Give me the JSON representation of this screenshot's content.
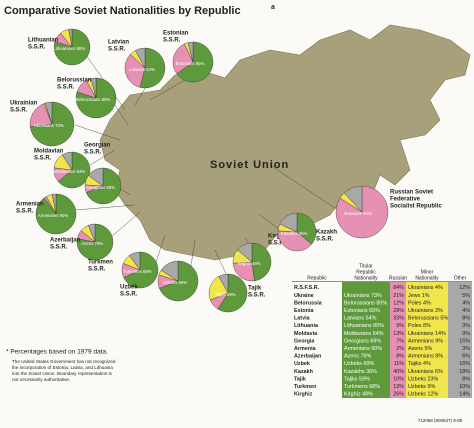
{
  "title": "Comparative Soviet Nationalities by Republic",
  "title_mark": "a",
  "map_label": "Soviet Union",
  "pies": [
    {
      "name": [
        "Lithuanian",
        "S.S.R."
      ],
      "label": "Lithuanians 80%",
      "values": [
        80,
        9,
        8,
        3
      ]
    },
    {
      "name": [
        "Latvian",
        "S.S.R."
      ],
      "label": "Latvians 54%",
      "values": [
        54,
        33,
        5,
        8
      ]
    },
    {
      "name": [
        "Estonian",
        "S.S.R."
      ],
      "label": "Estonians 65%",
      "values": [
        65,
        28,
        3,
        4
      ]
    },
    {
      "name": [
        "Belorussian",
        "S.S.R."
      ],
      "label": "Belorussians 80%",
      "values": [
        80,
        12,
        4,
        4
      ]
    },
    {
      "name": [
        "Ukrainian",
        "S.S.R."
      ],
      "label": "Ukrainians 73%",
      "values": [
        73,
        21,
        1,
        5
      ]
    },
    {
      "name": [
        "Moldavian",
        "S.S.R."
      ],
      "label": "Moldavians 64%",
      "values": [
        64,
        13,
        14,
        9
      ]
    },
    {
      "name": [
        "Georgian",
        "S.S.R."
      ],
      "label": "Georgians 69%",
      "values": [
        69,
        7,
        9,
        15
      ]
    },
    {
      "name": [
        "Armenian",
        "S.S.R."
      ],
      "label": "Armenians 90%",
      "values": [
        90,
        2,
        5,
        3
      ]
    },
    {
      "name": [
        "Azerbaijan",
        "S.S.R."
      ],
      "label": "Azeris 78%",
      "values": [
        78,
        8,
        8,
        6
      ]
    },
    {
      "name": [
        "Turkmen",
        "S.S.R."
      ],
      "label": "Turkmens 68%",
      "values": [
        68,
        13,
        9,
        10
      ]
    },
    {
      "name": [
        "Uzbek",
        "S.S.R."
      ],
      "label": "Uzbeks 69%",
      "values": [
        69,
        11,
        4,
        16
      ]
    },
    {
      "name": [
        "Tajik",
        "S.S.R."
      ],
      "label": "Tajiks 59%",
      "values": [
        59,
        10,
        23,
        8
      ]
    },
    {
      "name": [
        "Kirghiz",
        "S.S.R."
      ],
      "label": "Kirghiz 48%",
      "values": [
        48,
        26,
        12,
        14
      ]
    },
    {
      "name": [
        "Kazakh",
        "S.S.R."
      ],
      "label": "Kazakhs 36%",
      "values": [
        36,
        40,
        6,
        18
      ]
    },
    {
      "name": [
        "Russian Soviet",
        "Federative",
        "Socialist Republic"
      ],
      "label": "Russians 84%",
      "values": [
        0,
        84,
        4,
        12
      ]
    }
  ],
  "table": {
    "headers": [
      [
        "Republic"
      ],
      [
        "Titular",
        "Republic",
        "Nationality"
      ],
      [
        "Russian"
      ],
      [
        "Minor",
        "Nationality"
      ],
      [
        "Other"
      ]
    ],
    "rows": [
      [
        "R.S.F.S.R.",
        null,
        "84%",
        "Ukrainians 4%",
        "12%"
      ],
      [
        "Ukraine",
        "Ukrainians 73%",
        "21%",
        "Jews 1%",
        "5%"
      ],
      [
        "Belorussia",
        "Belorussians 80%",
        "12%",
        "Poles 4%",
        "4%"
      ],
      [
        "Estonia",
        "Estonians 65%",
        "28%",
        "Ukrainians 3%",
        "4%"
      ],
      [
        "Latvia",
        "Latvians 54%",
        "33%",
        "Belorussians 5%",
        "8%"
      ],
      [
        "Lithuania",
        "Lithuanians 80%",
        "9%",
        "Poles 8%",
        "3%"
      ],
      [
        "Moldavia",
        "Moldavians 64%",
        "13%",
        "Ukrainians 14%",
        "9%"
      ],
      [
        "Georgia",
        "Georgians 69%",
        "7%",
        "Armenians 9%",
        "15%"
      ],
      [
        "Armenia",
        "Armenians 90%",
        "2%",
        "Azeris 5%",
        "3%"
      ],
      [
        "Azerbaijan",
        "Azeris 78%",
        "8%",
        "Armenians 8%",
        "6%"
      ],
      [
        "Uzbek",
        "Uzbeks 69%",
        "11%",
        "Tajiks 4%",
        "16%"
      ],
      [
        "Kazakh",
        "Kazakhs 36%",
        "40%",
        "Ukrainians 6%",
        "18%"
      ],
      [
        "Tajik",
        "Tajiks 59%",
        "10%",
        "Uzbeks 23%",
        "8%"
      ],
      [
        "Turkmen",
        "Turkmens 68%",
        "13%",
        "Uzbeks 9%",
        "10%"
      ],
      [
        "Kirghiz",
        "Kirghiz 48%",
        "26%",
        "Uzbeks 12%",
        "14%"
      ]
    ]
  },
  "footnote": "* Percentages based on 1979 data.",
  "note": [
    "The United States Government has not recognized",
    "the incorporation of Estonia, Latvia, and Lithuania",
    "into the Soviet Union. Boundary representation is",
    "not necessarily authoritative."
  ],
  "code": "712068 (800637) 9-89"
}
